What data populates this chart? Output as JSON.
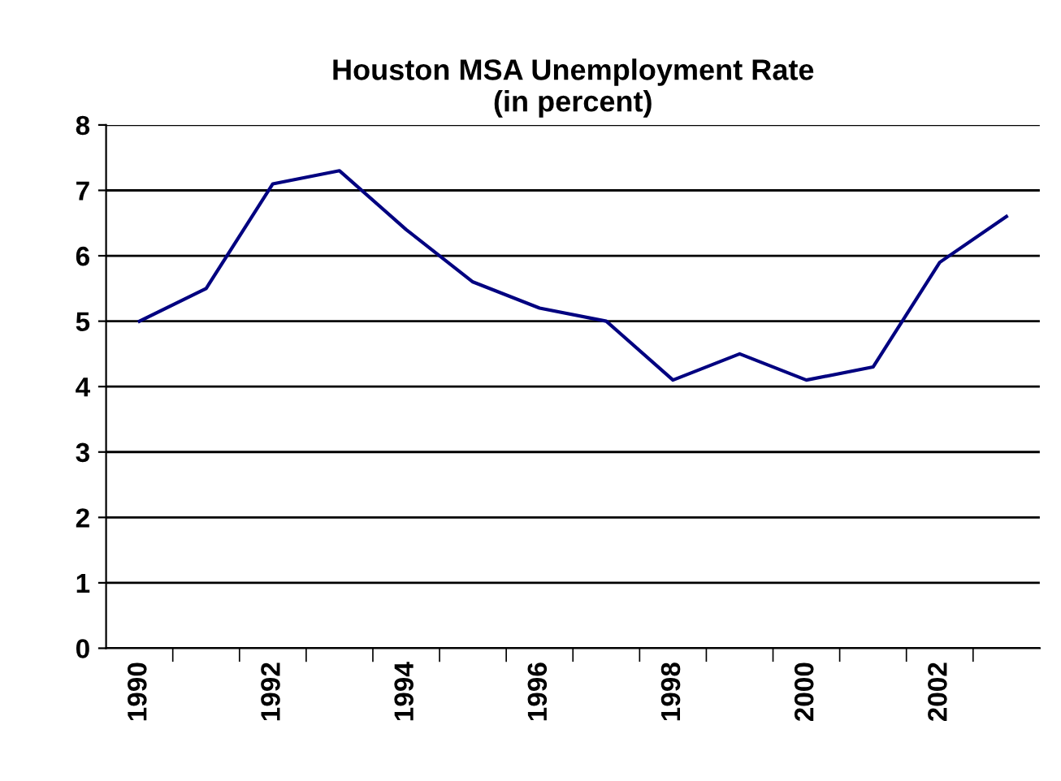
{
  "chart_data": {
    "type": "line",
    "title": "Houston MSA Unemployment Rate\n(in percent)",
    "categories": [
      "1990",
      null,
      "1992",
      null,
      "1994",
      null,
      "1996",
      null,
      "1998",
      null,
      "2000",
      null,
      "2002",
      null
    ],
    "series": [
      {
        "color": "#000080",
        "values": [
          5.0,
          5.5,
          7.1,
          7.3,
          6.4,
          5.6,
          5.2,
          5.0,
          4.1,
          4.5,
          4.1,
          4.3,
          5.9,
          6.6
        ]
      }
    ],
    "ylim": [
      0,
      8
    ],
    "yticks": [
      0,
      1,
      2,
      3,
      4,
      5,
      6,
      7,
      8
    ],
    "grid": "y",
    "marker": "none",
    "line_style": "solid"
  }
}
